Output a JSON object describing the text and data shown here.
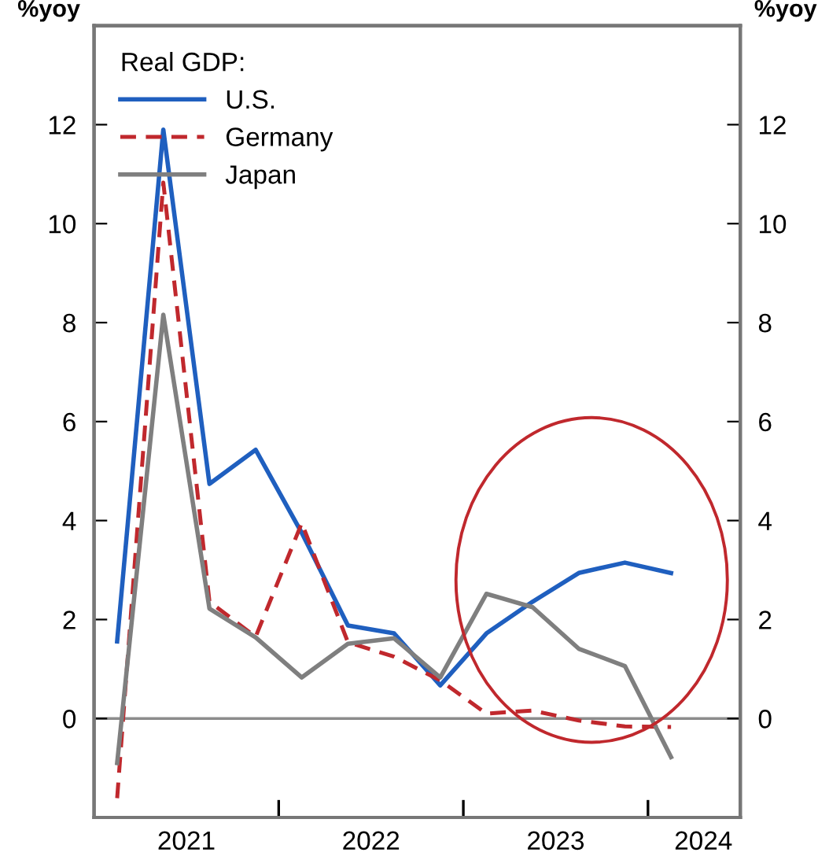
{
  "chart_data": {
    "type": "line",
    "ylabel": "%yoy",
    "y2label": "%yoy",
    "legend_title": "Real GDP:",
    "legend": "top left",
    "grid": false,
    "x": [
      2021.125,
      2021.375,
      2021.625,
      2021.875,
      2022.125,
      2022.375,
      2022.625,
      2022.875,
      2023.125,
      2023.375,
      2023.625,
      2023.875,
      2024.125
    ],
    "series": [
      {
        "name": "U.S.",
        "color": "#1f5fbf",
        "line_style": "solid",
        "values": [
          1.56,
          11.9,
          4.74,
          5.43,
          3.75,
          1.88,
          1.72,
          0.67,
          1.72,
          2.36,
          2.94,
          3.15,
          2.94
        ]
      },
      {
        "name": "Germany",
        "color": "#c0282d",
        "line_style": "dashed",
        "values": [
          -1.61,
          10.83,
          2.36,
          1.65,
          3.95,
          1.54,
          1.25,
          0.77,
          0.1,
          0.16,
          -0.04,
          -0.16,
          -0.17
        ]
      },
      {
        "name": "Japan",
        "color": "#7f7f7f",
        "line_style": "solid",
        "values": [
          -0.9,
          8.16,
          2.22,
          1.64,
          0.83,
          1.51,
          1.62,
          0.83,
          2.52,
          2.25,
          1.41,
          1.06,
          -0.78
        ]
      }
    ],
    "xlim": [
      2021,
      2024.5
    ],
    "xticks": [
      {
        "value": 2021.5,
        "label": "2021"
      },
      {
        "value": 2022,
        "label": null
      },
      {
        "value": 2022.5,
        "label": "2022"
      },
      {
        "value": 2023,
        "label": null
      },
      {
        "value": 2023.5,
        "label": "2023"
      },
      {
        "value": 2024,
        "label": null
      },
      {
        "value": 2024.3,
        "label": "2024"
      }
    ],
    "ylim": [
      -2,
      14
    ],
    "yticks": [
      0,
      2,
      4,
      6,
      8,
      10,
      12
    ],
    "y2lim": [
      -2,
      14
    ],
    "y2ticks": [
      0,
      2,
      4,
      6,
      8,
      10,
      12
    ],
    "ref_lines": [
      {
        "axis": "y",
        "value": 0,
        "color": "#8c8c8c"
      }
    ]
  }
}
